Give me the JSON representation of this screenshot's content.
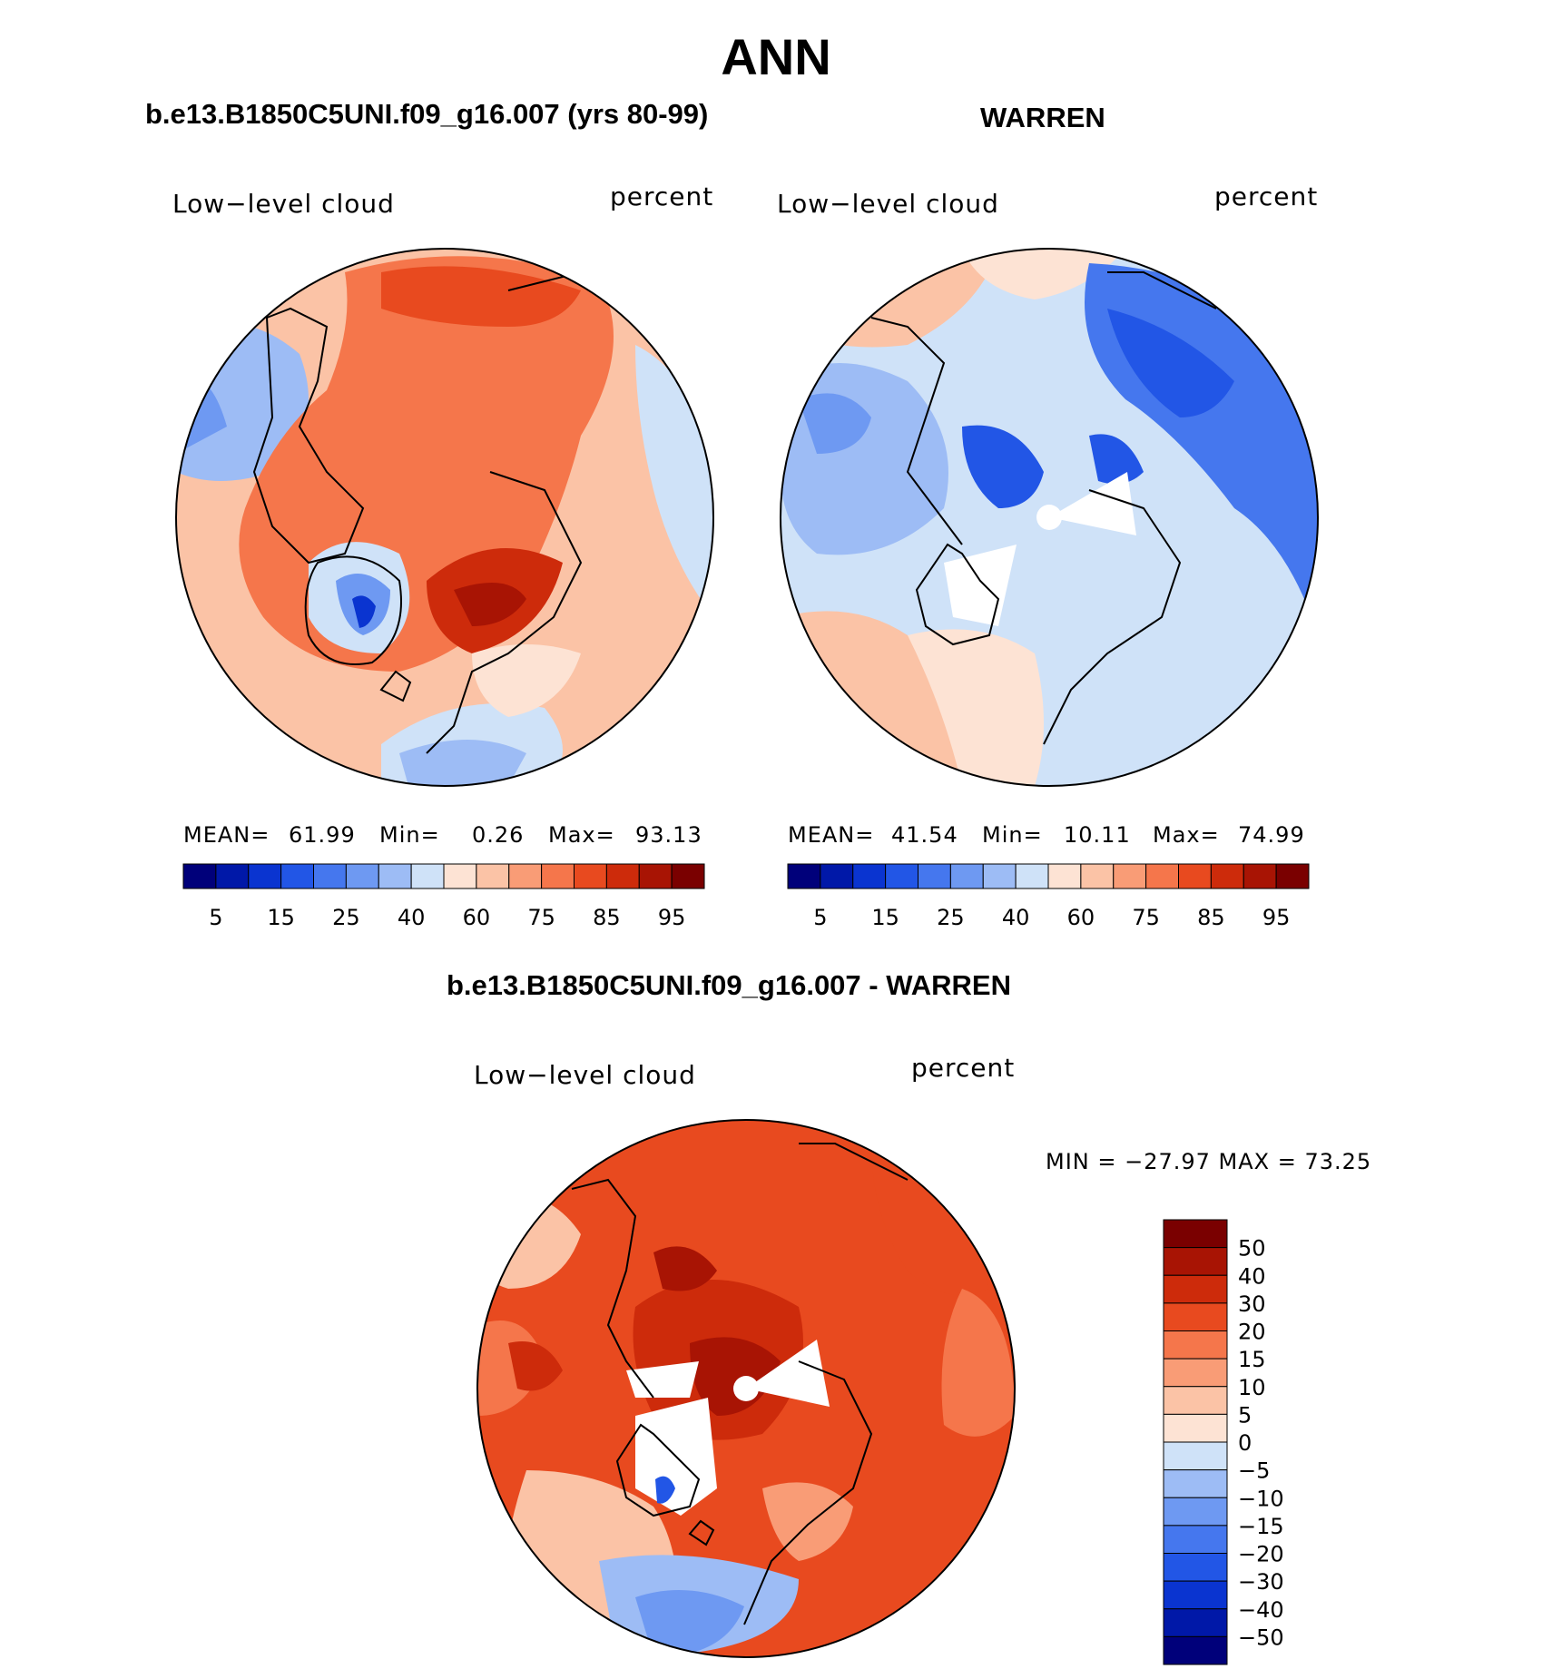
{
  "title": "ANN",
  "panels": [
    {
      "heading": "b.e13.B1850C5UNI.f09_g16.007 (yrs 80-99)",
      "variable": "Low−level cloud",
      "units": "percent",
      "stats": {
        "mean_label": "MEAN=",
        "mean": "61.99",
        "min_label": "Min=",
        "min": "0.26",
        "max_label": "Max=",
        "max": "93.13"
      }
    },
    {
      "heading": "WARREN",
      "variable": "Low−level cloud",
      "units": "percent",
      "stats": {
        "mean_label": "MEAN=",
        "mean": "41.54",
        "min_label": "Min=",
        "min": "10.11",
        "max_label": "Max=",
        "max": "74.99"
      }
    }
  ],
  "diff": {
    "heading": "b.e13.B1850C5UNI.f09_g16.007 - WARREN",
    "variable": "Low−level cloud",
    "units": "percent",
    "minmax": "MIN = −27.97 MAX =   73.25"
  },
  "chart_data": [
    {
      "type": "heatmap",
      "projection": "north-polar-stereographic",
      "title": "b.e13.B1850C5UNI.f09_g16.007 (yrs 80-99)",
      "variable": "Low−level cloud",
      "units": "percent",
      "mean": 61.99,
      "min": 0.26,
      "max": 93.13,
      "colorbar_ticks": [
        "5",
        "15",
        "25",
        "40",
        "60",
        "75",
        "85",
        "95"
      ],
      "colorbar_levels": [
        5,
        10,
        15,
        20,
        25,
        30,
        40,
        50,
        60,
        65,
        75,
        80,
        85,
        90,
        95
      ]
    },
    {
      "type": "heatmap",
      "projection": "north-polar-stereographic",
      "title": "WARREN",
      "variable": "Low−level cloud",
      "units": "percent",
      "mean": 41.54,
      "min": 10.11,
      "max": 74.99,
      "colorbar_ticks": [
        "5",
        "15",
        "25",
        "40",
        "60",
        "75",
        "85",
        "95"
      ],
      "colorbar_levels": [
        5,
        10,
        15,
        20,
        25,
        30,
        40,
        50,
        60,
        65,
        75,
        80,
        85,
        90,
        95
      ]
    },
    {
      "type": "heatmap",
      "projection": "north-polar-stereographic",
      "title": "b.e13.B1850C5UNI.f09_g16.007 - WARREN",
      "variable": "Low−level cloud",
      "units": "percent",
      "min": -27.97,
      "max": 73.25,
      "colorbar_ticks": [
        "50",
        "40",
        "30",
        "20",
        "15",
        "10",
        "5",
        "0",
        "−5",
        "−10",
        "−15",
        "−20",
        "−30",
        "−40",
        "−50"
      ],
      "colorbar_levels": [
        50,
        40,
        30,
        20,
        15,
        10,
        5,
        0,
        -5,
        -10,
        -15,
        -20,
        -30,
        -40,
        -50
      ]
    }
  ],
  "palette": {
    "blue_to_red": [
      "#00007a",
      "#0018a8",
      "#0a34d0",
      "#2256e6",
      "#4577ee",
      "#6e99f2",
      "#9dbcf5",
      "#cfe2f8",
      "#fde3d4",
      "#fbc3a6",
      "#f99c76",
      "#f5764b",
      "#e84a1f",
      "#cd2b0b",
      "#a81404",
      "#7a0000"
    ]
  }
}
